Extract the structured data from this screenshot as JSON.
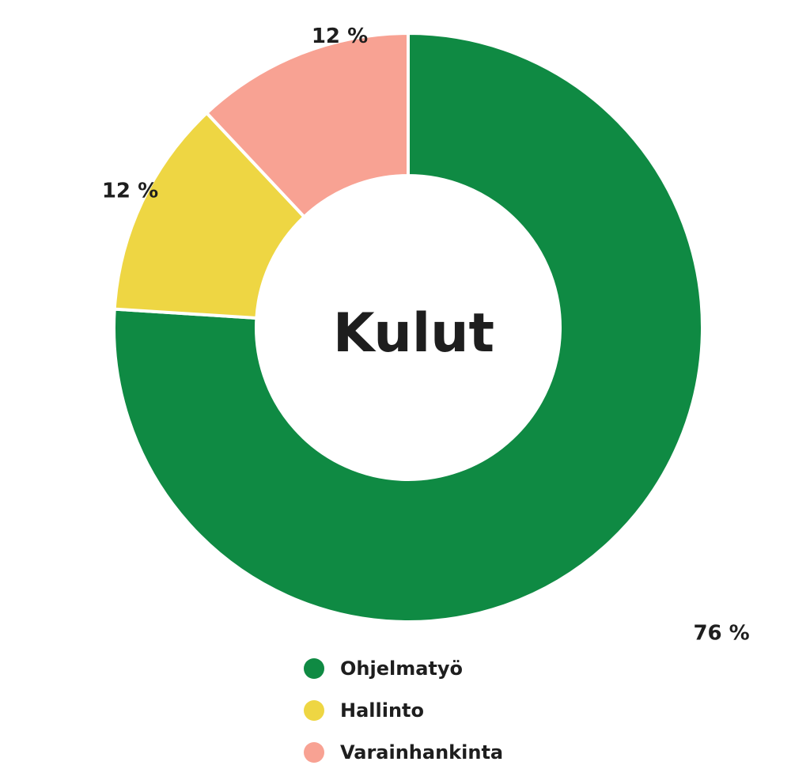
{
  "chart_data": {
    "type": "pie",
    "title": "Kulut",
    "categories": [
      "Ohjelmatyö",
      "Hallinto",
      "Varainhankinta"
    ],
    "values": [
      76,
      12,
      12
    ],
    "value_labels": [
      "76 %",
      "12 %",
      "12 %"
    ],
    "colors": [
      "#0f8a43",
      "#eed643",
      "#f8a293"
    ],
    "legend_position": "bottom",
    "donut": true
  }
}
